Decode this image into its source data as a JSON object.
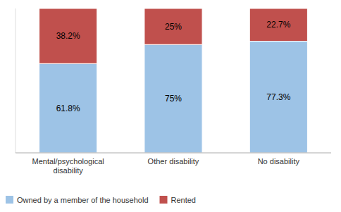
{
  "chart_data": {
    "type": "bar",
    "stacked": true,
    "data_labels": true,
    "categories": [
      "Mental/psychological\ndisability",
      "Other disability",
      "No disability"
    ],
    "series": [
      {
        "name": "Owned by a member of the household",
        "color": "#9DC3E6",
        "values": [
          61.8,
          75.0,
          77.3
        ],
        "value_labels": [
          "61.8%",
          "75%",
          "77.3%"
        ]
      },
      {
        "name": "Rented",
        "color": "#C0504D",
        "values": [
          38.2,
          25.0,
          22.7
        ],
        "value_labels": [
          "38.2%",
          "25%",
          "22.7%"
        ]
      }
    ],
    "ylim": [
      0,
      100
    ],
    "yticks": [],
    "grid": false,
    "legend": "bottom",
    "tick_labels": "x"
  }
}
